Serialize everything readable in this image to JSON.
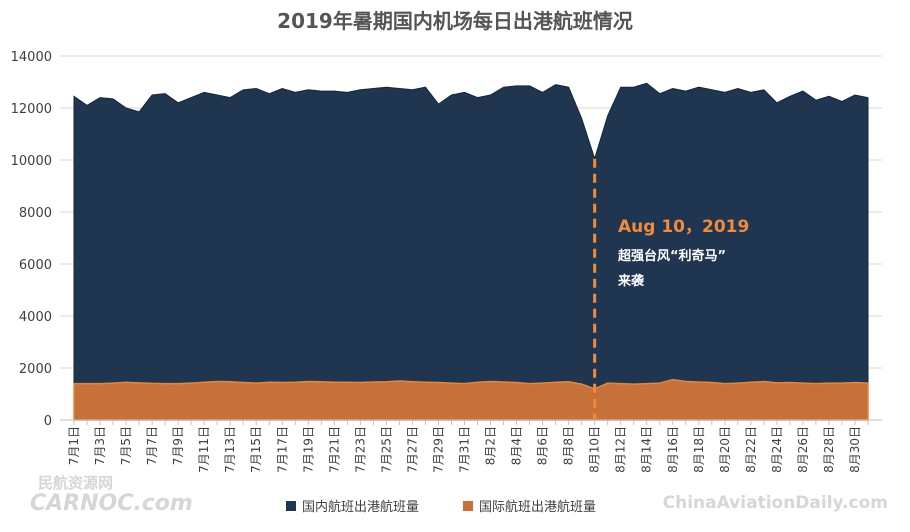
{
  "chart_data": {
    "type": "area",
    "title": "2019年暑期国内机场每日出港航班情况",
    "xlabel": "",
    "ylabel": "",
    "ylim": [
      0,
      14000
    ],
    "yticks": [
      "0",
      "2000",
      "4000",
      "6000",
      "8000",
      "10000",
      "12000",
      "14000"
    ],
    "grid": true,
    "legend_position": "bottom",
    "x": [
      "7月1日",
      "7月2日",
      "7月3日",
      "7月4日",
      "7月5日",
      "7月6日",
      "7月7日",
      "7月8日",
      "7月9日",
      "7月10日",
      "7月11日",
      "7月12日",
      "7月13日",
      "7月14日",
      "7月15日",
      "7月16日",
      "7月17日",
      "7月18日",
      "7月19日",
      "7月20日",
      "7月21日",
      "7月22日",
      "7月23日",
      "7月24日",
      "7月25日",
      "7月26日",
      "7月27日",
      "7月28日",
      "7月29日",
      "7月30日",
      "7月31日",
      "8月1日",
      "8月2日",
      "8月3日",
      "8月4日",
      "8月5日",
      "8月6日",
      "8月7日",
      "8月8日",
      "8月9日",
      "8月10日",
      "8月11日",
      "8月12日",
      "8月13日",
      "8月14日",
      "8月15日",
      "8月16日",
      "8月17日",
      "8月18日",
      "8月19日",
      "8月20日",
      "8月21日",
      "8月22日",
      "8月23日",
      "8月24日",
      "8月25日",
      "8月26日",
      "8月27日",
      "8月28日",
      "8月29日",
      "8月30日",
      "8月31日"
    ],
    "series": [
      {
        "name": "国内航班出港航班量",
        "color": "#1f3550",
        "values": [
          12450,
          12100,
          12400,
          12350,
          12000,
          11850,
          12500,
          12550,
          12200,
          12400,
          12600,
          12500,
          12400,
          12700,
          12750,
          12550,
          12750,
          12600,
          12700,
          12650,
          12650,
          12600,
          12700,
          12750,
          12800,
          12750,
          12700,
          12800,
          12150,
          12500,
          12600,
          12400,
          12500,
          12800,
          12850,
          12850,
          12600,
          12900,
          12800,
          11600,
          10050,
          11700,
          12800,
          12800,
          12950,
          12550,
          12750,
          12650,
          12800,
          12700,
          12600,
          12750,
          12600,
          12700,
          12200,
          12450,
          12650,
          12300,
          12450,
          12250,
          12500,
          12400
        ]
      },
      {
        "name": "国际航班出港航班量",
        "color": "#c6703a",
        "values": [
          1400,
          1400,
          1400,
          1420,
          1450,
          1430,
          1410,
          1400,
          1400,
          1420,
          1450,
          1480,
          1470,
          1440,
          1420,
          1450,
          1440,
          1450,
          1480,
          1470,
          1450,
          1450,
          1440,
          1460,
          1470,
          1500,
          1470,
          1450,
          1440,
          1420,
          1400,
          1450,
          1480,
          1460,
          1440,
          1400,
          1420,
          1450,
          1470,
          1380,
          1200,
          1420,
          1400,
          1380,
          1400,
          1420,
          1550,
          1480,
          1460,
          1440,
          1400,
          1420,
          1450,
          1480,
          1430,
          1440,
          1420,
          1400,
          1420,
          1420,
          1440,
          1420
        ]
      }
    ],
    "annotation": {
      "x": "8月10日",
      "headline": "Aug 10，2019",
      "line1": "超强台风“利奇马”",
      "line2": "来袭",
      "color": "#f08a3c"
    }
  },
  "watermarks": {
    "left_line1": "民航资源网",
    "left_line2": "CARNOC.com",
    "right": "ChinaAviationDaily.com"
  }
}
